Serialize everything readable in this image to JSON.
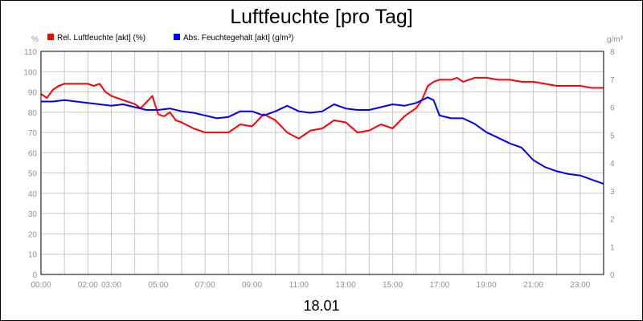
{
  "chart_data": {
    "type": "line",
    "title": "Luftfeuchte [pro Tag]",
    "date_label": "18.01",
    "y_left": {
      "unit": "%",
      "ticks": [
        0,
        10,
        20,
        30,
        40,
        50,
        60,
        70,
        80,
        90,
        100,
        110
      ],
      "range": [
        0,
        110
      ]
    },
    "y_right": {
      "unit": "g/m³",
      "ticks": [
        0,
        1,
        2,
        3,
        4,
        5,
        6,
        7,
        8
      ],
      "range": [
        0,
        8
      ]
    },
    "x_ticks": [
      "00:00",
      "02:00",
      "03:00",
      "05:00",
      "07:00",
      "09:00",
      "11:00",
      "13:00",
      "15:00",
      "17:00",
      "19:00",
      "21:00",
      "23:00"
    ],
    "x_range_hours": [
      0,
      24
    ],
    "grid": true,
    "legend_position": "top-left",
    "series": [
      {
        "name": "Rel. Luftfeuchte [akt] (%)",
        "color": "#ff0000",
        "axis": "left",
        "x": [
          0,
          0.25,
          0.5,
          0.75,
          1,
          1.5,
          2,
          2.25,
          2.5,
          2.75,
          3,
          3.5,
          4,
          4.25,
          4.5,
          4.75,
          5,
          5.25,
          5.5,
          5.75,
          6,
          6.5,
          7,
          7.5,
          8,
          8.5,
          9,
          9.5,
          10,
          10.5,
          11,
          11.5,
          12,
          12.5,
          13,
          13.5,
          14,
          14.5,
          15,
          15.25,
          15.5,
          15.75,
          16,
          16.25,
          16.5,
          16.75,
          17,
          17.5,
          17.75,
          18,
          18.5,
          19,
          19.5,
          20,
          20.5,
          21,
          21.5,
          22,
          22.5,
          23,
          23.5,
          24
        ],
        "y": [
          89,
          87,
          91,
          93,
          94,
          94,
          94,
          93,
          94,
          90,
          88,
          86,
          84,
          82,
          85,
          88,
          79,
          78,
          80,
          76,
          75,
          72,
          70,
          70,
          70,
          74,
          73,
          79,
          76,
          70,
          67,
          71,
          72,
          76,
          75,
          70,
          71,
          74,
          72,
          75,
          78,
          80,
          82,
          86,
          93,
          95,
          96,
          96,
          97,
          95,
          97,
          97,
          96,
          96,
          95,
          95,
          94,
          93,
          93,
          93,
          92,
          92
        ]
      },
      {
        "name": "Abs. Feuchtegehalt [akt] (g/m³)",
        "color": "#0000ff",
        "axis": "right",
        "x": [
          0,
          0.5,
          1,
          1.5,
          2,
          2.5,
          3,
          3.5,
          4,
          4.5,
          5,
          5.5,
          6,
          6.5,
          7,
          7.5,
          8,
          8.5,
          9,
          9.5,
          10,
          10.5,
          11,
          11.5,
          12,
          12.5,
          13,
          13.5,
          14,
          14.5,
          15,
          15.5,
          16,
          16.25,
          16.5,
          16.75,
          17,
          17.5,
          18,
          18.5,
          19,
          19.5,
          20,
          20.5,
          21,
          21.5,
          22,
          22.5,
          23,
          23.5,
          24
        ],
        "y": [
          6.2,
          6.2,
          6.25,
          6.2,
          6.15,
          6.1,
          6.05,
          6.1,
          6.0,
          5.9,
          5.9,
          5.95,
          5.85,
          5.8,
          5.7,
          5.6,
          5.65,
          5.85,
          5.85,
          5.7,
          5.85,
          6.05,
          5.85,
          5.8,
          5.85,
          6.1,
          5.95,
          5.9,
          5.9,
          6.0,
          6.1,
          6.05,
          6.15,
          6.25,
          6.35,
          6.25,
          5.7,
          5.6,
          5.6,
          5.4,
          5.1,
          4.9,
          4.7,
          4.55,
          4.1,
          3.85,
          3.7,
          3.6,
          3.55,
          3.4,
          3.25
        ]
      }
    ]
  }
}
